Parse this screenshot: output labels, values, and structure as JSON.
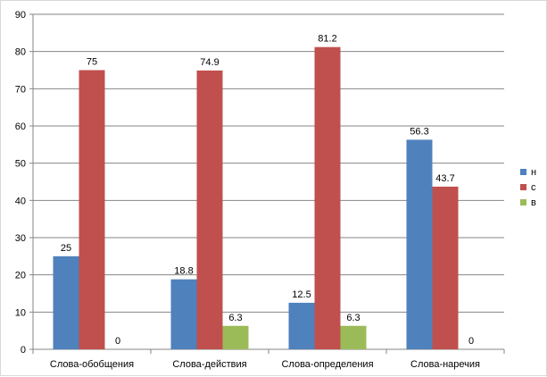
{
  "chart_data": {
    "type": "bar",
    "categories": [
      "Слова-обобщения",
      "Слова-действия",
      "Слова-определения",
      "Слова-наречия"
    ],
    "series": [
      {
        "name": "н",
        "color": "#4f81bd",
        "values": [
          25,
          18.8,
          12.5,
          56.3
        ]
      },
      {
        "name": "с",
        "color": "#c0504d",
        "values": [
          75,
          74.9,
          81.2,
          43.7
        ]
      },
      {
        "name": "в",
        "color": "#9bbb59",
        "values": [
          0,
          6.3,
          6.3,
          0
        ]
      }
    ],
    "data_labels": [
      [
        "25",
        "18.8",
        "12.5",
        "56.3"
      ],
      [
        "75",
        "74.9",
        "81.2",
        "43.7"
      ],
      [
        "0",
        "6.3",
        "6.3",
        "0"
      ]
    ],
    "ylim": [
      0,
      90
    ],
    "yticks": [
      0,
      10,
      20,
      30,
      40,
      50,
      60,
      70,
      80,
      90
    ],
    "grid": true,
    "legend": "right"
  }
}
